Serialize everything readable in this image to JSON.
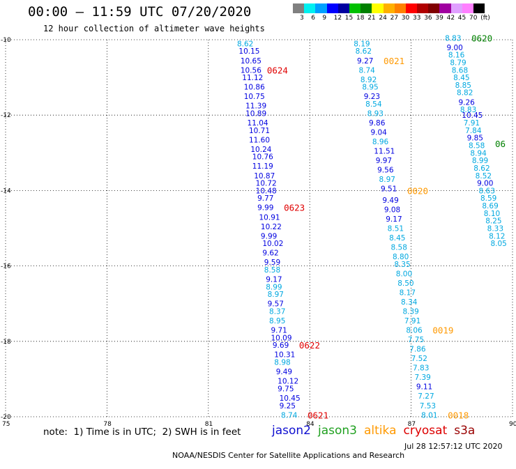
{
  "header": {
    "title": "00:00 – 11:59 UTC 07/20/2020",
    "subtitle": "12 hour collection of altimeter wave heights"
  },
  "legend": {
    "colors": [
      "#808080",
      "#00f0f0",
      "#00a0ff",
      "#0000ff",
      "#0000a0",
      "#00c000",
      "#008000",
      "#ffff00",
      "#ffb000",
      "#ff8000",
      "#ff0000",
      "#b00000",
      "#800000",
      "#a000a0",
      "#e0a0ff",
      "#ff80ff",
      "#000000"
    ],
    "labels": [
      "3",
      "6",
      "9",
      "12",
      "15",
      "18",
      "21",
      "24",
      "27",
      "30",
      "33",
      "36",
      "39",
      "42",
      "45",
      "70",
      "(ft)"
    ]
  },
  "map": {
    "lat_labels": [
      "-10",
      "-12",
      "-14",
      "-16",
      "-18",
      "-20"
    ],
    "lon_labels": [
      "75",
      "78",
      "81",
      "84",
      "87",
      "90"
    ],
    "tracks": [
      {
        "satellite": "jason2",
        "time_labels": [
          {
            "text": "0624",
            "lat": -10.8
          },
          {
            "text": "0623",
            "lat": -14.45
          },
          {
            "text": "0622",
            "lat": -18.1
          },
          {
            "text": "0621",
            "lat": -19.95
          }
        ],
        "readings": [
          {
            "lat": -10.1,
            "lon": 81.85,
            "value": "8.62"
          },
          {
            "lat": -10.3,
            "lon": 81.9,
            "value": "10.15"
          },
          {
            "lat": -10.55,
            "lon": 81.95,
            "value": "10.65"
          },
          {
            "lat": -10.8,
            "lon": 81.95,
            "value": "10.56"
          },
          {
            "lat": -11.0,
            "lon": 82.0,
            "value": "11.12"
          },
          {
            "lat": -11.25,
            "lon": 82.05,
            "value": "10.86"
          },
          {
            "lat": -11.5,
            "lon": 82.05,
            "value": "10.75"
          },
          {
            "lat": -11.75,
            "lon": 82.1,
            "value": "11.39"
          },
          {
            "lat": -11.95,
            "lon": 82.1,
            "value": "10.89"
          },
          {
            "lat": -12.2,
            "lon": 82.15,
            "value": "11.04"
          },
          {
            "lat": -12.4,
            "lon": 82.2,
            "value": "10.71"
          },
          {
            "lat": -12.65,
            "lon": 82.2,
            "value": "11.60"
          },
          {
            "lat": -12.9,
            "lon": 82.25,
            "value": "10.24"
          },
          {
            "lat": -13.1,
            "lon": 82.3,
            "value": "10.76"
          },
          {
            "lat": -13.35,
            "lon": 82.3,
            "value": "11.19"
          },
          {
            "lat": -13.6,
            "lon": 82.35,
            "value": "10.87"
          },
          {
            "lat": -13.8,
            "lon": 82.4,
            "value": "10.72"
          },
          {
            "lat": -14.0,
            "lon": 82.4,
            "value": "10.48"
          },
          {
            "lat": -14.2,
            "lon": 82.45,
            "value": "9.77"
          },
          {
            "lat": -14.45,
            "lon": 82.45,
            "value": "9.99"
          },
          {
            "lat": -14.7,
            "lon": 82.5,
            "value": "10.91"
          },
          {
            "lat": -14.95,
            "lon": 82.55,
            "value": "10.22"
          },
          {
            "lat": -15.2,
            "lon": 82.55,
            "value": "9.99"
          },
          {
            "lat": -15.4,
            "lon": 82.6,
            "value": "10.02"
          },
          {
            "lat": -15.65,
            "lon": 82.6,
            "value": "9.62"
          },
          {
            "lat": -15.9,
            "lon": 82.65,
            "value": "9.59"
          },
          {
            "lat": -16.1,
            "lon": 82.65,
            "value": "8.58"
          },
          {
            "lat": -16.35,
            "lon": 82.7,
            "value": "9.17"
          },
          {
            "lat": -16.55,
            "lon": 82.7,
            "value": "8.99"
          },
          {
            "lat": -16.75,
            "lon": 82.75,
            "value": "8.97"
          },
          {
            "lat": -17.0,
            "lon": 82.75,
            "value": "9.57"
          },
          {
            "lat": -17.2,
            "lon": 82.8,
            "value": "8.37"
          },
          {
            "lat": -17.45,
            "lon": 82.8,
            "value": "8.95"
          },
          {
            "lat": -17.7,
            "lon": 82.85,
            "value": "9.71"
          },
          {
            "lat": -17.9,
            "lon": 82.85,
            "value": "10.09"
          },
          {
            "lat": -18.1,
            "lon": 82.9,
            "value": "9.69"
          },
          {
            "lat": -18.35,
            "lon": 82.95,
            "value": "10.31"
          },
          {
            "lat": -18.55,
            "lon": 82.95,
            "value": "8.98"
          },
          {
            "lat": -18.8,
            "lon": 83.0,
            "value": "9.49"
          },
          {
            "lat": -19.05,
            "lon": 83.05,
            "value": "10.12"
          },
          {
            "lat": -19.25,
            "lon": 83.05,
            "value": "9.75"
          },
          {
            "lat": -19.5,
            "lon": 83.1,
            "value": "10.45"
          },
          {
            "lat": -19.7,
            "lon": 83.1,
            "value": "9.25"
          },
          {
            "lat": -19.95,
            "lon": 83.15,
            "value": "8.74"
          }
        ]
      },
      {
        "satellite": "altika",
        "time_labels": [
          {
            "text": "0021",
            "lat": -10.55
          },
          {
            "text": "0020",
            "lat": -14.0
          },
          {
            "text": "0019",
            "lat": -17.7
          },
          {
            "text": "0018",
            "lat": -19.95
          }
        ],
        "readings": [
          {
            "lat": -10.1,
            "lon": 85.3,
            "value": "8.19"
          },
          {
            "lat": -10.3,
            "lon": 85.35,
            "value": "8.62"
          },
          {
            "lat": -10.55,
            "lon": 85.4,
            "value": "9.27"
          },
          {
            "lat": -10.8,
            "lon": 85.45,
            "value": "8.74"
          },
          {
            "lat": -11.05,
            "lon": 85.5,
            "value": "8.92"
          },
          {
            "lat": -11.25,
            "lon": 85.55,
            "value": "8.95"
          },
          {
            "lat": -11.5,
            "lon": 85.6,
            "value": "9.23"
          },
          {
            "lat": -11.7,
            "lon": 85.65,
            "value": "8.54"
          },
          {
            "lat": -11.95,
            "lon": 85.7,
            "value": "8.93"
          },
          {
            "lat": -12.2,
            "lon": 85.75,
            "value": "9.86"
          },
          {
            "lat": -12.45,
            "lon": 85.8,
            "value": "9.04"
          },
          {
            "lat": -12.7,
            "lon": 85.85,
            "value": "8.96"
          },
          {
            "lat": -12.95,
            "lon": 85.9,
            "value": "11.51"
          },
          {
            "lat": -13.2,
            "lon": 85.95,
            "value": "9.97"
          },
          {
            "lat": -13.45,
            "lon": 86.0,
            "value": "9.56"
          },
          {
            "lat": -13.7,
            "lon": 86.05,
            "value": "8.97"
          },
          {
            "lat": -13.95,
            "lon": 86.1,
            "value": "9.51"
          },
          {
            "lat": -14.25,
            "lon": 86.15,
            "value": "9.49"
          },
          {
            "lat": -14.5,
            "lon": 86.2,
            "value": "9.08"
          },
          {
            "lat": -14.75,
            "lon": 86.25,
            "value": "9.17"
          },
          {
            "lat": -15.0,
            "lon": 86.3,
            "value": "8.51"
          },
          {
            "lat": -15.25,
            "lon": 86.35,
            "value": "8.45"
          },
          {
            "lat": -15.5,
            "lon": 86.4,
            "value": "8.58"
          },
          {
            "lat": -15.75,
            "lon": 86.45,
            "value": "8.80"
          },
          {
            "lat": -15.95,
            "lon": 86.5,
            "value": "8.35"
          },
          {
            "lat": -16.2,
            "lon": 86.55,
            "value": "8.00"
          },
          {
            "lat": -16.45,
            "lon": 86.6,
            "value": "8.50"
          },
          {
            "lat": -16.7,
            "lon": 86.65,
            "value": "8.17"
          },
          {
            "lat": -16.95,
            "lon": 86.7,
            "value": "8.34"
          },
          {
            "lat": -17.2,
            "lon": 86.75,
            "value": "8.39"
          },
          {
            "lat": -17.45,
            "lon": 86.8,
            "value": "7.91"
          },
          {
            "lat": -17.7,
            "lon": 86.85,
            "value": "8.06"
          },
          {
            "lat": -17.95,
            "lon": 86.9,
            "value": "7.75"
          },
          {
            "lat": -18.2,
            "lon": 86.95,
            "value": "7.86"
          },
          {
            "lat": -18.45,
            "lon": 87.0,
            "value": "7.52"
          },
          {
            "lat": -18.7,
            "lon": 87.05,
            "value": "7.83"
          },
          {
            "lat": -18.95,
            "lon": 87.1,
            "value": "7.39"
          },
          {
            "lat": -19.2,
            "lon": 87.15,
            "value": "9.11"
          },
          {
            "lat": -19.45,
            "lon": 87.2,
            "value": "7.27"
          },
          {
            "lat": -19.7,
            "lon": 87.25,
            "value": "7.53"
          },
          {
            "lat": -19.95,
            "lon": 87.3,
            "value": "8.01"
          }
        ]
      },
      {
        "satellite": "jason3",
        "time_labels": [
          {
            "text": "0620",
            "lat": -9.95
          },
          {
            "text": "06",
            "lat": -12.75
          }
        ],
        "readings": [
          {
            "lat": -9.95,
            "lon": 88.0,
            "value": "8.83"
          },
          {
            "lat": -10.2,
            "lon": 88.05,
            "value": "9.00"
          },
          {
            "lat": -10.4,
            "lon": 88.1,
            "value": "8.16"
          },
          {
            "lat": -10.6,
            "lon": 88.15,
            "value": "8.79"
          },
          {
            "lat": -10.8,
            "lon": 88.2,
            "value": "8.68"
          },
          {
            "lat": -11.0,
            "lon": 88.25,
            "value": "8.45"
          },
          {
            "lat": -11.2,
            "lon": 88.3,
            "value": "8.85"
          },
          {
            "lat": -11.4,
            "lon": 88.35,
            "value": "8.82"
          },
          {
            "lat": -11.65,
            "lon": 88.4,
            "value": "9.26"
          },
          {
            "lat": -11.85,
            "lon": 88.45,
            "value": "8.83"
          },
          {
            "lat": -12.0,
            "lon": 88.5,
            "value": "10.45"
          },
          {
            "lat": -12.2,
            "lon": 88.55,
            "value": "7.91"
          },
          {
            "lat": -12.4,
            "lon": 88.6,
            "value": "7.84"
          },
          {
            "lat": -12.6,
            "lon": 88.65,
            "value": "9.85"
          },
          {
            "lat": -12.8,
            "lon": 88.7,
            "value": "8.58"
          },
          {
            "lat": -13.0,
            "lon": 88.75,
            "value": "8.94"
          },
          {
            "lat": -13.2,
            "lon": 88.8,
            "value": "8.99"
          },
          {
            "lat": -13.4,
            "lon": 88.85,
            "value": "8.62"
          },
          {
            "lat": -13.6,
            "lon": 88.9,
            "value": "8.52"
          },
          {
            "lat": -13.8,
            "lon": 88.95,
            "value": "9.00"
          },
          {
            "lat": -14.0,
            "lon": 89.0,
            "value": "8.63"
          },
          {
            "lat": -14.2,
            "lon": 89.05,
            "value": "8.59"
          },
          {
            "lat": -14.4,
            "lon": 89.1,
            "value": "8.69"
          },
          {
            "lat": -14.6,
            "lon": 89.15,
            "value": "8.10"
          },
          {
            "lat": -14.8,
            "lon": 89.2,
            "value": "8.25"
          },
          {
            "lat": -15.0,
            "lon": 89.25,
            "value": "8.33"
          },
          {
            "lat": -15.2,
            "lon": 89.3,
            "value": "8.12"
          },
          {
            "lat": -15.4,
            "lon": 89.35,
            "value": "8.05"
          }
        ]
      }
    ]
  },
  "notes": {
    "text": "note:  1) Time is in UTC;  2) SWH is in feet",
    "satellites": [
      {
        "name": "jason2",
        "color": "#1010d0"
      },
      {
        "name": "jason3",
        "color": "#20a020"
      },
      {
        "name": "altika",
        "color": "#ff9900"
      },
      {
        "name": "cryosat",
        "color": "#dd0000"
      },
      {
        "name": "s3a",
        "color": "#990000"
      }
    ]
  },
  "footer": {
    "credit": "NOAA/NESDIS Center for Satellite Applications and Research",
    "timestamp": "Jul 28 12:57:12 UTC 2020"
  }
}
